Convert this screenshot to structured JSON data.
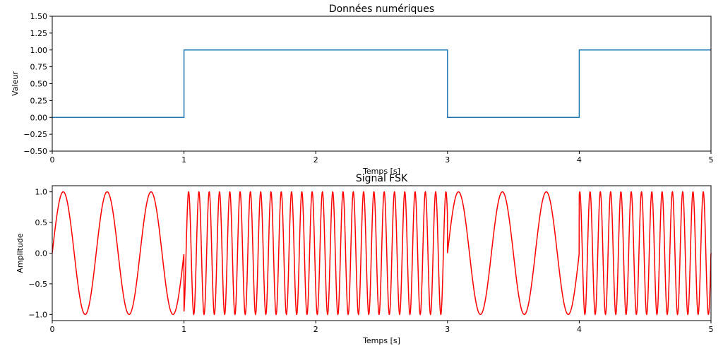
{
  "chart_data": [
    {
      "type": "line",
      "title": "Données numériques",
      "xlabel": "Temps [s]",
      "ylabel": "Valeur",
      "xlim": [
        0,
        5
      ],
      "ylim": [
        -0.5,
        1.5
      ],
      "x_ticks": [
        "0",
        "1",
        "2",
        "3",
        "4",
        "5"
      ],
      "y_ticks": [
        "−0.50",
        "−0.25",
        "0.00",
        "0.25",
        "0.50",
        "0.75",
        "1.00",
        "1.25",
        "1.50"
      ],
      "grid": false,
      "step": true,
      "series": [
        {
          "color": "#1f77b4",
          "x": [
            0,
            1,
            1,
            3,
            3,
            4,
            4,
            5
          ],
          "y": [
            0,
            0,
            1,
            1,
            0,
            0,
            1,
            1
          ]
        }
      ]
    },
    {
      "type": "line",
      "title": "Signal FSK",
      "xlabel": "Temps [s]",
      "ylabel": "Amplitude",
      "xlim": [
        0,
        5
      ],
      "ylim": [
        -1.1,
        1.1
      ],
      "x_ticks": [
        "0",
        "1",
        "2",
        "3",
        "4",
        "5"
      ],
      "y_ticks": [
        "−1.0",
        "−0.5",
        "0.0",
        "0.5",
        "1.0"
      ],
      "grid": false,
      "series": [
        {
          "color": "#ff0000",
          "function": "sin(2*pi*f*t)",
          "bits": [
            0,
            1,
            1,
            0,
            1
          ],
          "freq_bit0_hz": 3,
          "freq_bit1_hz": 12.8
        }
      ]
    }
  ]
}
